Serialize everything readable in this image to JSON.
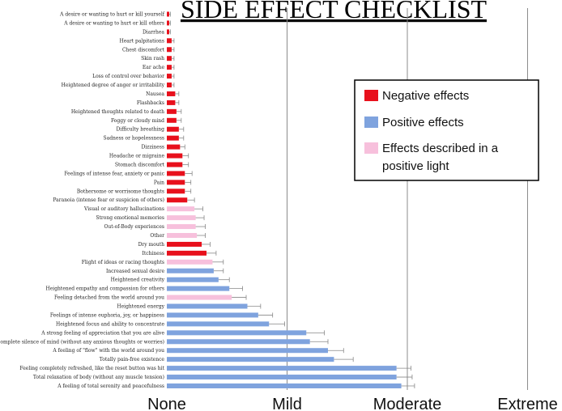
{
  "chart_data": {
    "type": "bar",
    "orientation": "horizontal",
    "title": "SIDE EFFECT CHECKLIST",
    "xlabel": "",
    "ylabel": "",
    "x_ticks": [
      "None",
      "Mild",
      "Moderate",
      "Extreme"
    ],
    "xlim": [
      0,
      3
    ],
    "grid": true,
    "legend_position": "top-right",
    "colors": {
      "negative": "#e8101c",
      "positive": "#7fa3de",
      "positive_light": "#f7c0dc"
    },
    "legend": [
      {
        "key": "negative",
        "label": "Negative effects"
      },
      {
        "key": "positive",
        "label": "Positive effects"
      },
      {
        "key": "positive_light",
        "label": "Effects described in a positive light"
      }
    ],
    "categories": [
      {
        "label": "A desire or wanting to hurt or kill yourself",
        "value": 0.02,
        "error": 0.01,
        "group": "negative"
      },
      {
        "label": "A desire or wanting to hurt or kill others",
        "value": 0.02,
        "error": 0.01,
        "group": "negative"
      },
      {
        "label": "Diarrhea",
        "value": 0.02,
        "error": 0.01,
        "group": "negative"
      },
      {
        "label": "Heart palpitations",
        "value": 0.04,
        "error": 0.02,
        "group": "negative"
      },
      {
        "label": "Chest discomfort",
        "value": 0.04,
        "error": 0.02,
        "group": "negative"
      },
      {
        "label": "Skin rash",
        "value": 0.04,
        "error": 0.02,
        "group": "negative"
      },
      {
        "label": "Ear ache",
        "value": 0.04,
        "error": 0.02,
        "group": "negative"
      },
      {
        "label": "Loss of control  over behavior",
        "value": 0.04,
        "error": 0.02,
        "group": "negative"
      },
      {
        "label": "Heightened degree of anger or irritability",
        "value": 0.04,
        "error": 0.02,
        "group": "negative"
      },
      {
        "label": "Nausea",
        "value": 0.07,
        "error": 0.03,
        "group": "negative"
      },
      {
        "label": "Flashbacks",
        "value": 0.07,
        "error": 0.03,
        "group": "negative"
      },
      {
        "label": "Heightened thoughts related to death",
        "value": 0.08,
        "error": 0.04,
        "group": "negative"
      },
      {
        "label": "Foggy or cloudy mind",
        "value": 0.08,
        "error": 0.04,
        "group": "negative"
      },
      {
        "label": "Difficulty breathing",
        "value": 0.1,
        "error": 0.04,
        "group": "negative"
      },
      {
        "label": "Sadness or hopelessness",
        "value": 0.1,
        "error": 0.04,
        "group": "negative"
      },
      {
        "label": "Dizziness",
        "value": 0.11,
        "error": 0.04,
        "group": "negative"
      },
      {
        "label": "Headache or migraine",
        "value": 0.13,
        "error": 0.05,
        "group": "negative"
      },
      {
        "label": "Stomach discomfort",
        "value": 0.13,
        "error": 0.05,
        "group": "negative"
      },
      {
        "label": "Feelings of intense fear, anxiety or panic",
        "value": 0.15,
        "error": 0.06,
        "group": "negative"
      },
      {
        "label": "Pain",
        "value": 0.15,
        "error": 0.05,
        "group": "negative"
      },
      {
        "label": "Bothersome or worrisome thoughts",
        "value": 0.15,
        "error": 0.05,
        "group": "negative"
      },
      {
        "label": "Paranoia (intense fear or suspicion of others)",
        "value": 0.17,
        "error": 0.06,
        "group": "negative"
      },
      {
        "label": "Visual or auditory hallucinations",
        "value": 0.23,
        "error": 0.07,
        "group": "positive_light"
      },
      {
        "label": "Strong emotional memories",
        "value": 0.24,
        "error": 0.07,
        "group": "positive_light"
      },
      {
        "label": "Out-of-Body experiences",
        "value": 0.24,
        "error": 0.08,
        "group": "positive_light"
      },
      {
        "label": "Other",
        "value": 0.25,
        "error": 0.07,
        "group": "positive_light"
      },
      {
        "label": "Dry mouth",
        "value": 0.29,
        "error": 0.07,
        "group": "negative"
      },
      {
        "label": "Itchiness",
        "value": 0.33,
        "error": 0.08,
        "group": "negative"
      },
      {
        "label": "Flight of ideas or racing thoughts",
        "value": 0.38,
        "error": 0.09,
        "group": "positive_light"
      },
      {
        "label": "Increased sexual desire",
        "value": 0.39,
        "error": 0.08,
        "group": "positive"
      },
      {
        "label": "Heightened creativity",
        "value": 0.43,
        "error": 0.09,
        "group": "positive"
      },
      {
        "label": "Heightened empathy and compassion for others",
        "value": 0.52,
        "error": 0.11,
        "group": "positive"
      },
      {
        "label": "Feeling detached from the world around you",
        "value": 0.54,
        "error": 0.12,
        "group": "positive_light"
      },
      {
        "label": "Heightened energy",
        "value": 0.67,
        "error": 0.11,
        "group": "positive"
      },
      {
        "label": "Feelings of intense euphoria, joy, or happiness",
        "value": 0.76,
        "error": 0.12,
        "group": "positive"
      },
      {
        "label": "Heightened focus and ability to concentrate",
        "value": 0.85,
        "error": 0.13,
        "group": "positive"
      },
      {
        "label": "A strong feeling of appreciation that you are alive",
        "value": 1.16,
        "error": 0.15,
        "group": "positive"
      },
      {
        "label": "Complete silence of mind (without any anxious thoughts or worries)",
        "value": 1.19,
        "error": 0.15,
        "group": "positive"
      },
      {
        "label": "A feeling of \"flow\" with the world around you",
        "value": 1.34,
        "error": 0.13,
        "group": "positive"
      },
      {
        "label": "Totally pain-free existence",
        "value": 1.39,
        "error": 0.16,
        "group": "positive"
      },
      {
        "label": "Feeling completely refreshed, like the reset button was hit",
        "value": 1.91,
        "error": 0.12,
        "group": "positive"
      },
      {
        "label": "Total relaxation of body (without any muscle tension)",
        "value": 1.91,
        "error": 0.13,
        "group": "positive"
      },
      {
        "label": "A feeling of total serenity and peacefulness",
        "value": 1.95,
        "error": 0.11,
        "group": "positive"
      }
    ]
  }
}
